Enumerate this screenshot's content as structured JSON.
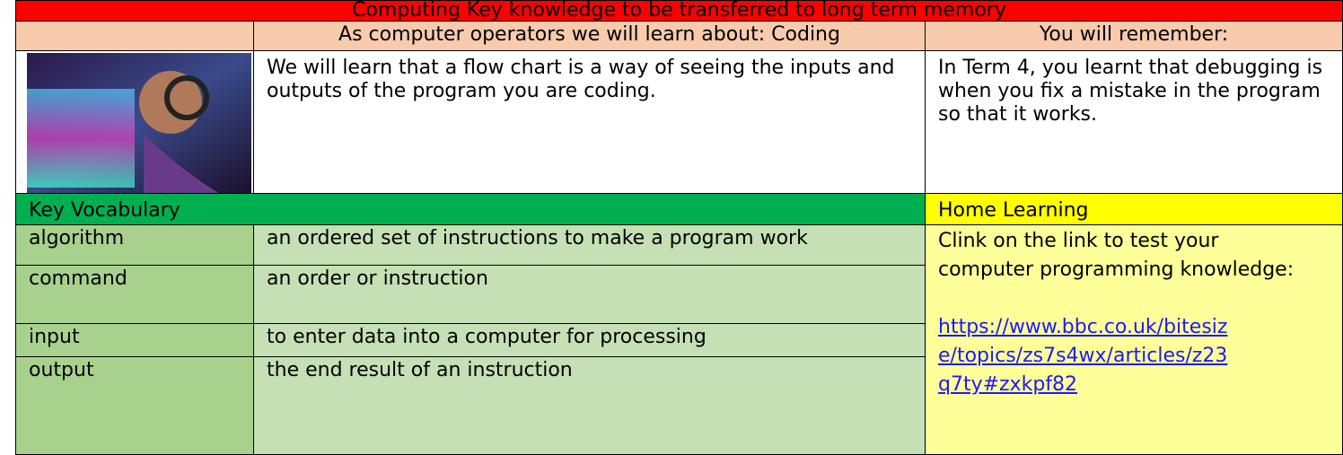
{
  "header": {
    "title": "Computing Key knowledge to be transferred to long term memory",
    "learn_heading": "As computer operators we will learn about: Coding",
    "remember_heading": "You will remember:"
  },
  "learn_text": "We will learn that a flow chart is a way of seeing the inputs and outputs of the program you are coding.",
  "remember_text": "In Term 4, you learnt that debugging is when you fix a mistake in the program so that it works.",
  "vocabulary": {
    "heading": "Key Vocabulary",
    "rows": [
      [
        "algorithm",
        "an ordered set of instructions to make a program work"
      ],
      [
        "command",
        "an order or instruction"
      ],
      [
        "input",
        "to enter data into a computer for processing"
      ],
      [
        "output",
        "the end result of an instruction"
      ]
    ]
  },
  "home_learning": {
    "heading": "Home Learning",
    "text": "Clink on the link to test your computer programming knowledge:",
    "link": "https://www.bbc.co.uk/bitesize/topics/zs7s4wx/articles/z23q7ty#zxkpf82"
  }
}
